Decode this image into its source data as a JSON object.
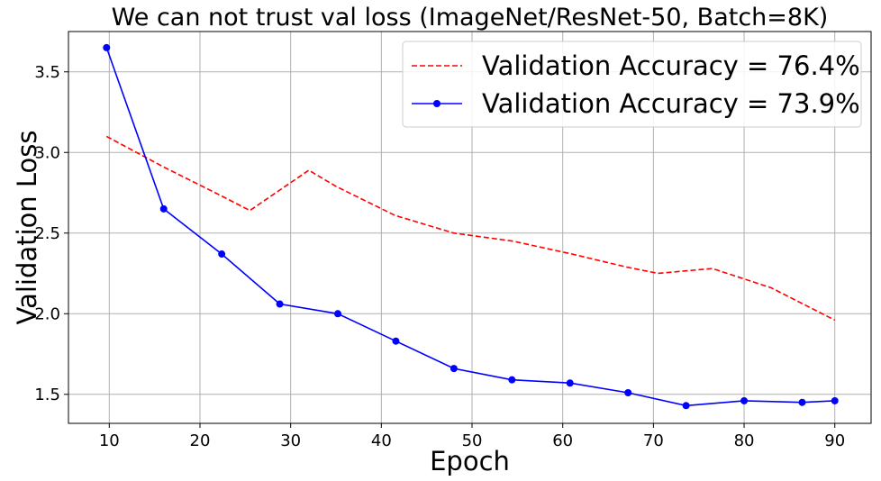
{
  "chart_data": {
    "type": "line",
    "title": "We can not trust val loss (ImageNet/ResNet-50, Batch=8K)",
    "xlabel": "Epoch",
    "ylabel": "Validation Loss",
    "xlim": [
      5.5,
      94
    ],
    "ylim": [
      1.32,
      3.75
    ],
    "xticks": [
      10,
      20,
      30,
      40,
      50,
      60,
      70,
      80,
      90
    ],
    "yticks": [
      1.5,
      2.0,
      2.5,
      3.0,
      3.5
    ],
    "xtick_labels": [
      "10",
      "20",
      "30",
      "40",
      "50",
      "60",
      "70",
      "80",
      "90"
    ],
    "ytick_labels": [
      "1.5",
      "2.0",
      "2.5",
      "3.0",
      "3.5"
    ],
    "grid": true,
    "legend_position": "top-right",
    "series": [
      {
        "name": "Validation Accuracy = 76.4%",
        "color": "#ff0000",
        "line_style": "dashed",
        "marker": "none",
        "x": [
          9.7,
          16,
          22.4,
          25.5,
          32,
          35,
          41.5,
          48,
          54.5,
          61,
          67,
          70.5,
          76.5,
          83,
          90
        ],
        "y": [
          3.1,
          2.91,
          2.73,
          2.64,
          2.89,
          2.79,
          2.61,
          2.5,
          2.45,
          2.37,
          2.29,
          2.25,
          2.28,
          2.16,
          1.96
        ]
      },
      {
        "name": "Validation Accuracy = 73.9%",
        "color": "#0000ff",
        "line_style": "solid",
        "marker": "circle",
        "x": [
          9.7,
          16,
          22.4,
          28.8,
          35.2,
          41.6,
          48,
          54.4,
          60.8,
          67.2,
          73.6,
          80,
          86.4,
          90
        ],
        "y": [
          3.65,
          2.65,
          2.37,
          2.06,
          2.0,
          1.83,
          1.66,
          1.59,
          1.57,
          1.51,
          1.43,
          1.46,
          1.45,
          1.46
        ]
      }
    ]
  }
}
